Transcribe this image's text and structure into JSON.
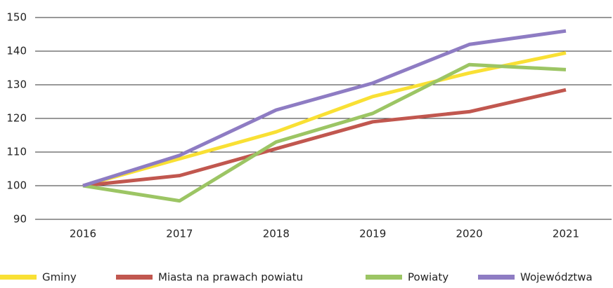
{
  "chart_data": {
    "type": "line",
    "categories": [
      "2016",
      "2017",
      "2018",
      "2019",
      "2020",
      "2021"
    ],
    "series": [
      {
        "name": "Gminy",
        "color": "#f9e034",
        "values": [
          100,
          108,
          116,
          126.5,
          133.5,
          139.5
        ]
      },
      {
        "name": "Miasta na prawach powiatu",
        "color": "#c1574f",
        "values": [
          100,
          103,
          111,
          119,
          122,
          128.5
        ]
      },
      {
        "name": "Powiaty",
        "color": "#9cc564",
        "values": [
          100,
          95.5,
          113,
          121.5,
          136,
          134.5
        ]
      },
      {
        "name": "Województwa",
        "color": "#8e7cc3",
        "values": [
          100,
          109,
          122.5,
          130.5,
          142,
          146
        ]
      }
    ],
    "ylim": [
      90,
      150
    ],
    "yticks": [
      90,
      100,
      110,
      120,
      130,
      140,
      150
    ],
    "grid": true,
    "legend": "bottom"
  }
}
